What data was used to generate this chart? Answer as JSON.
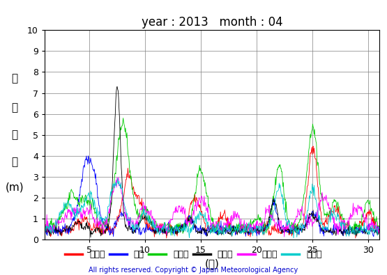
{
  "title": "year : 2013   month : 04",
  "ylabel_chars": [
    "有",
    "義",
    "波",
    "高",
    "(m)"
  ],
  "xlabel": "(日)",
  "copyright": "All rights reserved. Copyright © Japan Meteorological Agency",
  "xlim": [
    1,
    31
  ],
  "ylim": [
    0,
    10
  ],
  "xticks": [
    5,
    10,
    15,
    20,
    25,
    30
  ],
  "yticks": [
    0,
    1,
    2,
    3,
    4,
    5,
    6,
    7,
    8,
    9,
    10
  ],
  "series": [
    {
      "label": "上ノ国",
      "color": "#ff0000"
    },
    {
      "label": "唐桑",
      "color": "#0000ff"
    },
    {
      "label": "石廂崎",
      "color": "#00cc00"
    },
    {
      "label": "経ヶ崎",
      "color": "#000000"
    },
    {
      "label": "生月島",
      "color": "#ff00ff"
    },
    {
      "label": "屋久島",
      "color": "#00cccc"
    }
  ],
  "bg_color": "#ffffff",
  "grid_color": "#808080",
  "title_fontsize": 12,
  "label_fontsize": 11,
  "legend_fontsize": 10,
  "copyright_color": "#0000cc"
}
